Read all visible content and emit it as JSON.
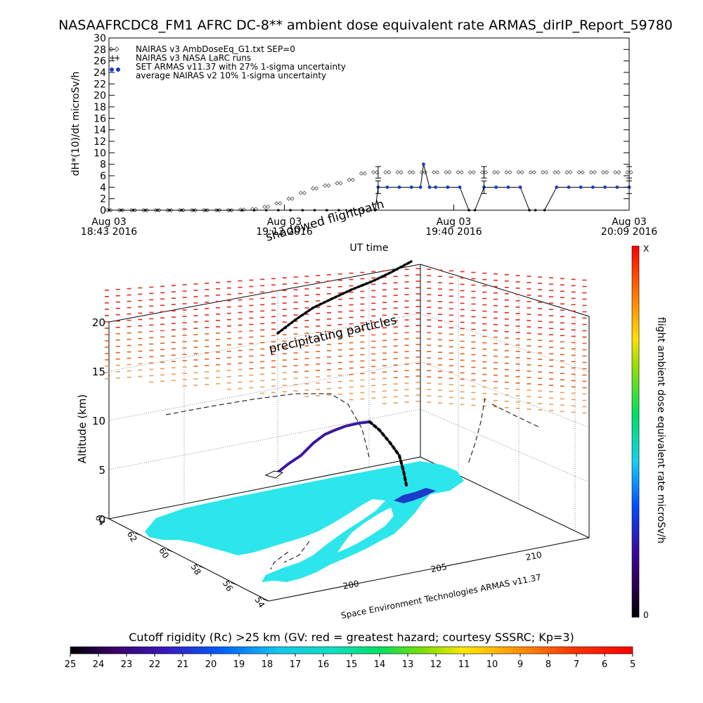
{
  "title": "NASAAFRCDC8_FM1 AFRC DC-8** ambient dose equivalent rate ARMAS_dirIP_Report_59780",
  "chart_data": [
    {
      "type": "line",
      "ylabel": "dH*(10)/dt microSv/h",
      "xlabel": "UT time",
      "ylim": [
        0,
        30
      ],
      "yticks": [
        0,
        2,
        4,
        6,
        8,
        10,
        12,
        14,
        16,
        18,
        20,
        22,
        24,
        26,
        28,
        30
      ],
      "xticks": [
        {
          "line1": "Aug 03",
          "line2": "18:43 2016",
          "t": 0
        },
        {
          "line1": "Aug 03",
          "line2": "19:12 2016",
          "t": 29
        },
        {
          "line1": "Aug 03",
          "line2": "19:40 2016",
          "t": 57
        },
        {
          "line1": "Aug 03",
          "line2": "20:09 2016",
          "t": 86
        }
      ],
      "xlim": [
        0,
        86
      ],
      "grid": false,
      "legend_position": "top-left",
      "legend": [
        {
          "label": "NAIRAS v3 AmbDoseEq_G1.txt SEP=0",
          "marker": "diamond"
        },
        {
          "label": "NAIRAS v3 NASA LaRC runs",
          "marker": "plus-errorbar"
        },
        {
          "label": "SET ARMAS v11.37 with 27% 1-sigma uncertainty",
          "marker": "blue-dot"
        },
        {
          "label": "average NAIRAS v2 10% 1-sigma uncertainty",
          "marker": "none"
        }
      ],
      "series": [
        {
          "name": "NAIRAS v3 AmbDoseEq_G1.txt SEP=0",
          "marker": "diamond",
          "x": [
            0,
            2,
            4,
            6,
            8,
            10,
            12,
            14,
            16,
            18,
            20,
            22,
            24,
            26,
            28,
            30,
            32,
            34,
            36,
            38,
            40,
            42,
            44,
            46,
            48,
            50,
            52,
            54,
            56,
            58,
            60,
            62,
            64,
            66,
            68,
            70,
            72,
            74,
            76,
            78,
            80,
            82,
            84,
            86
          ],
          "values": [
            0,
            0,
            0,
            0,
            0,
            0,
            0,
            0,
            0,
            0,
            0,
            0.1,
            0.2,
            0.6,
            1.2,
            2,
            3,
            3.8,
            4.3,
            4.7,
            5.3,
            6.4,
            6.6,
            6.6,
            6.6,
            6.6,
            6.6,
            6.6,
            6.6,
            6.6,
            6.6,
            6.6,
            6.6,
            6.6,
            6.6,
            6.6,
            6.6,
            6.6,
            6.6,
            6.6,
            6.6,
            6.6,
            6.6,
            6.6
          ]
        },
        {
          "name": "SET ARMAS v11.37 with 27% 1-sigma uncertainty",
          "marker": "blue-dot",
          "color": "#1a3cc8",
          "x": [
            0,
            2,
            4,
            6,
            8,
            10,
            12,
            14,
            16,
            18,
            20,
            22,
            24,
            26,
            28,
            30,
            32,
            34,
            36,
            38,
            40,
            42,
            44,
            44.5,
            46,
            48,
            50,
            51.5,
            52,
            53,
            54,
            56,
            58,
            59.5,
            60.5,
            62,
            64,
            66,
            68,
            69.5,
            70.5,
            72,
            74,
            76,
            78,
            80,
            82,
            84,
            86
          ],
          "values": [
            0,
            0,
            0,
            0,
            0,
            0,
            0,
            0,
            0,
            0,
            0,
            0,
            0,
            0,
            0,
            0,
            0,
            0,
            0,
            0,
            0,
            0,
            0,
            4,
            4,
            4,
            4,
            4,
            8,
            4,
            4,
            4,
            4,
            0,
            0,
            4,
            4,
            4,
            4,
            0,
            0,
            0,
            4,
            4,
            4,
            4,
            4,
            4,
            4
          ]
        }
      ],
      "error_bars": [
        {
          "x": 44.5,
          "center": 6.6,
          "low": 5.6,
          "high": 7.6
        },
        {
          "x": 62,
          "center": 6.6,
          "low": 5.6,
          "high": 7.6
        },
        {
          "x": 86,
          "center": 6.6,
          "low": 5.6,
          "high": 7.6
        },
        {
          "x": 44.5,
          "center": 4,
          "low": 2.9,
          "high": 5.1
        },
        {
          "x": 62,
          "center": 4,
          "low": 2.9,
          "high": 5.1
        },
        {
          "x": 86,
          "center": 4,
          "low": 2.9,
          "high": 5.1
        }
      ]
    },
    {
      "type": "scatter",
      "zlabel": "Altitude (km)",
      "zticks": [
        0,
        5,
        10,
        15,
        20
      ],
      "latitude_ticks": [
        64,
        62,
        60,
        58,
        56,
        54
      ],
      "longitude_ticks": [
        200,
        205,
        210
      ],
      "annotations": [
        "shadowed flightpath",
        "precipitating particles"
      ],
      "credit": "Space Environment Technologies ARMAS v11.37",
      "flight_dose_colorbar": {
        "label": "flight ambient dose equivalent rate microSv/h",
        "top_label": "X",
        "bottom_label": "0"
      },
      "cutoff_colorbar": {
        "label": "Cutoff rigidity (Rc) >25 km (GV: red = greatest hazard; courtesy SSSRC; Kp=3)",
        "ticks": [
          25,
          24,
          23,
          22,
          21,
          20,
          19,
          18,
          17,
          16,
          15,
          14,
          13,
          12,
          11,
          10,
          9,
          8,
          7,
          6,
          5
        ]
      },
      "ground_track_color": "#2ce6ec",
      "particle_colors": [
        "#e62a1e",
        "#e6621e",
        "#e8a05a"
      ]
    }
  ]
}
